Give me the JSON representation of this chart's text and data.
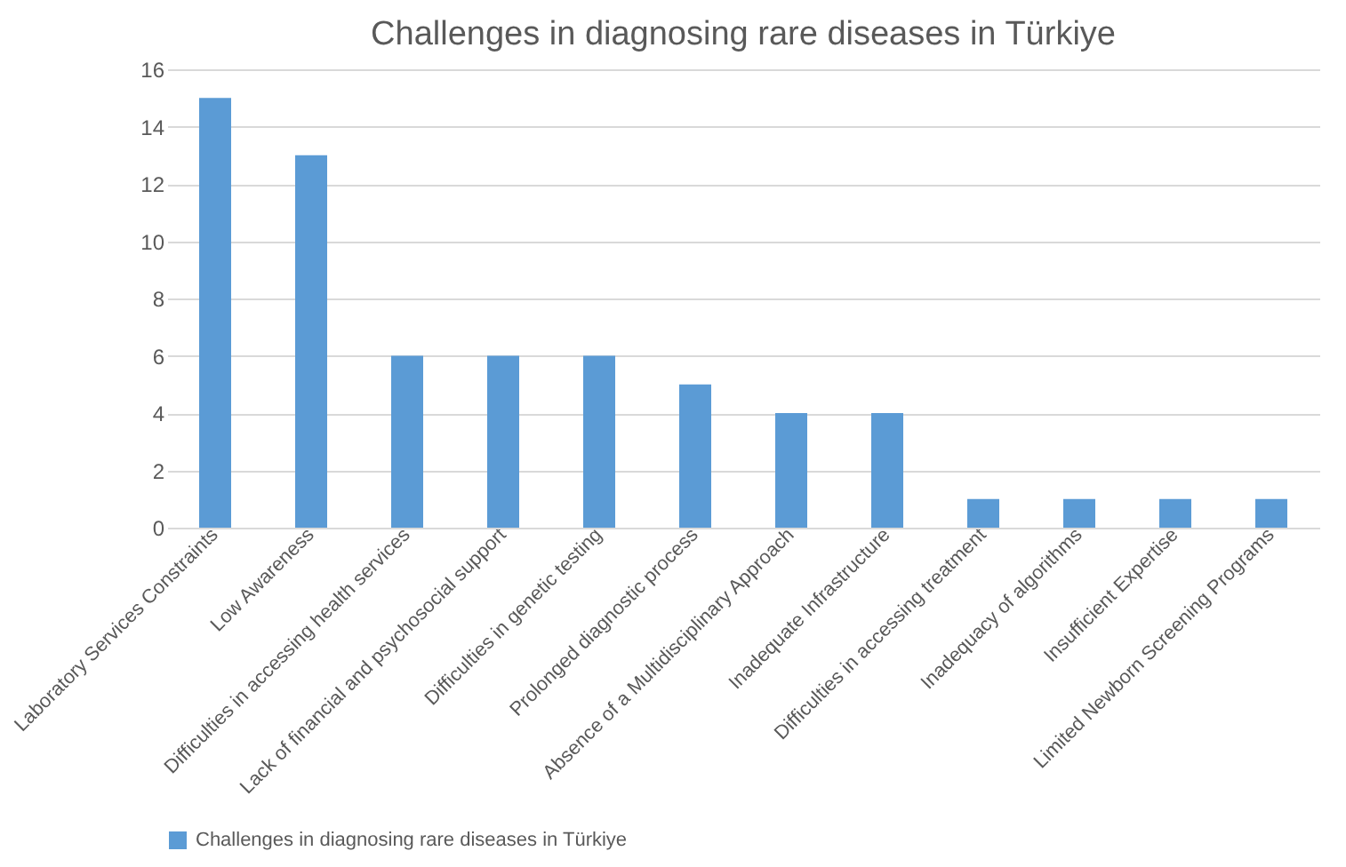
{
  "chart_data": {
    "type": "bar",
    "title": "Challenges in diagnosing rare diseases in Türkiye",
    "categories": [
      "Laboratory Services Constraints",
      "Low Awareness",
      "Difficulties in accessing health services",
      "Lack of financial and psychosocial support",
      "Difficulties in genetic testing",
      "Prolonged diagnostic process",
      "Absence of a Multidisciplinary Approach",
      "Inadequate Infrastructure",
      "Difficulties in accessing treatment",
      "Inadequacy of algorithms",
      "Insufficient Expertise",
      "Limited Newborn Screening Programs"
    ],
    "series": [
      {
        "name": "Challenges in diagnosing rare diseases in Türkiye",
        "color": "#5b9bd5",
        "values": [
          15,
          13,
          6,
          6,
          6,
          5,
          4,
          4,
          1,
          1,
          1,
          1
        ]
      }
    ],
    "ylim": [
      0,
      16
    ],
    "yticks": [
      0,
      2,
      4,
      6,
      8,
      10,
      12,
      14,
      16
    ],
    "grid": "y",
    "legend": "bottom"
  }
}
